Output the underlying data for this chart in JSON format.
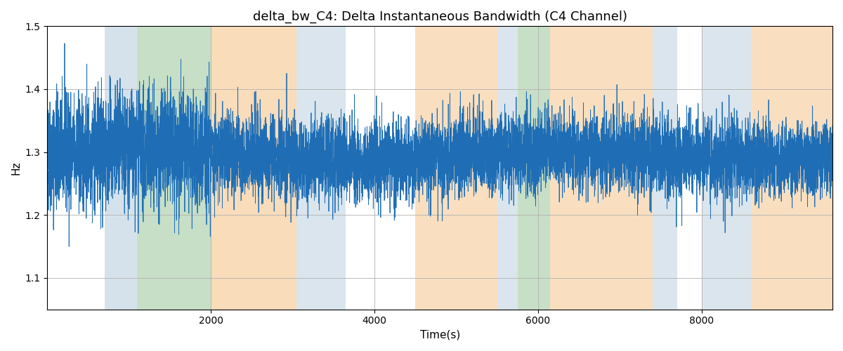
{
  "title": "delta_bw_C4: Delta Instantaneous Bandwidth (C4 Channel)",
  "xlabel": "Time(s)",
  "ylabel": "Hz",
  "xlim": [
    0,
    9600
  ],
  "ylim": [
    1.05,
    1.5
  ],
  "yticks": [
    1.1,
    1.2,
    1.3,
    1.4,
    1.5
  ],
  "xticks": [
    2000,
    4000,
    6000,
    8000
  ],
  "line_color": "#1f6eb5",
  "line_width": 0.6,
  "background_color": "#ffffff",
  "grid_color": "#b0b0b0",
  "seed": 42,
  "n_points": 9500,
  "signal_mean": 1.295,
  "signal_std": 0.038,
  "colored_bands": [
    {
      "xstart": 700,
      "xend": 1100,
      "color": "#aec6d8",
      "alpha": 0.5
    },
    {
      "xstart": 1100,
      "xend": 2000,
      "color": "#90c090",
      "alpha": 0.5
    },
    {
      "xstart": 2000,
      "xend": 3050,
      "color": "#f5c080",
      "alpha": 0.55
    },
    {
      "xstart": 3050,
      "xend": 3650,
      "color": "#aec6d8",
      "alpha": 0.45
    },
    {
      "xstart": 4500,
      "xend": 5500,
      "color": "#f5c080",
      "alpha": 0.5
    },
    {
      "xstart": 5500,
      "xend": 5750,
      "color": "#aec6d8",
      "alpha": 0.45
    },
    {
      "xstart": 5750,
      "xend": 6150,
      "color": "#90c090",
      "alpha": 0.5
    },
    {
      "xstart": 6150,
      "xend": 7400,
      "color": "#f5c080",
      "alpha": 0.5
    },
    {
      "xstart": 7400,
      "xend": 7700,
      "color": "#aec6d8",
      "alpha": 0.45
    },
    {
      "xstart": 8000,
      "xend": 8600,
      "color": "#aec6d8",
      "alpha": 0.45
    },
    {
      "xstart": 8600,
      "xend": 9600,
      "color": "#f5c080",
      "alpha": 0.5
    }
  ],
  "title_fontsize": 13,
  "label_fontsize": 11
}
